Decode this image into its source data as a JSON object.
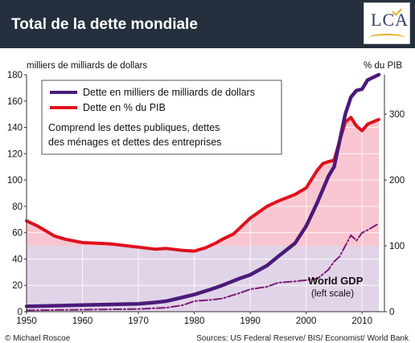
{
  "header": {
    "title": "Total de la dette mondiale",
    "logo_text": "LCA"
  },
  "colors": {
    "header_bg": "#252f3d",
    "debt_line": "#4b1a7a",
    "pct_line": "#e0101e",
    "gdp_line": "#7a1a78",
    "pink_fill": "#f8c6d0",
    "lavender_fill": "#ddd6ec",
    "plot_bg": "#ffffff"
  },
  "chart_data": {
    "type": "line",
    "left_axis_label": "milliers de milliards de dollars",
    "right_axis_label": "% du PIB",
    "x_ticks": [
      1950,
      1960,
      1970,
      1980,
      1990,
      2000,
      2010
    ],
    "xlim": [
      1950,
      2014
    ],
    "y_left_ticks": [
      0,
      20,
      40,
      60,
      80,
      100,
      120,
      140,
      160,
      180
    ],
    "ylim_left": [
      0,
      180
    ],
    "y_right_ticks": [
      0,
      100,
      200,
      300
    ],
    "ylim_right": [
      0,
      360
    ],
    "legend": {
      "items": [
        "Dette en milliers de milliards de dollars",
        "Dette en % du PIB"
      ],
      "note": "Comprend les dettes publiques, dettes des ménages et dettes des entreprises"
    },
    "gdp_annotation": [
      "World GDP",
      "(left scale)"
    ],
    "footer_left": "© Michael Roscoe",
    "footer_right": "Sources: US Federal Reserve/ BIS/ Economist/ World Bank",
    "series": [
      {
        "name": "Dette en milliers de milliards de dollars",
        "axis": "left",
        "color": "#4b1a7a",
        "x": [
          1950,
          1955,
          1960,
          1965,
          1970,
          1973,
          1975,
          1978,
          1980,
          1983,
          1985,
          1988,
          1990,
          1993,
          1995,
          1998,
          2000,
          2002,
          2004,
          2005,
          2006,
          2007,
          2008,
          2009,
          2010,
          2011,
          2013
        ],
        "y": [
          4,
          4.5,
          5,
          5.5,
          6,
          7,
          8,
          11,
          13,
          17,
          20,
          25,
          28,
          35,
          42,
          52,
          65,
          83,
          103,
          110,
          130,
          150,
          163,
          168,
          169,
          176,
          180
        ]
      },
      {
        "name": "Dette en % du PIB",
        "axis": "right",
        "color": "#e0101e",
        "x": [
          1950,
          1952,
          1954,
          1955,
          1957,
          1960,
          1965,
          1970,
          1973,
          1975,
          1978,
          1980,
          1982,
          1984,
          1985,
          1987,
          1990,
          1993,
          1995,
          1998,
          2000,
          2002,
          2003,
          2004,
          2005,
          2006,
          2007,
          2008,
          2009,
          2010,
          2011,
          2013
        ],
        "y": [
          138,
          130,
          120,
          115,
          110,
          105,
          103,
          98,
          95,
          96,
          93,
          92,
          97,
          105,
          110,
          118,
          142,
          160,
          168,
          178,
          188,
          215,
          225,
          228,
          230,
          260,
          288,
          295,
          282,
          275,
          285,
          292
        ]
      },
      {
        "name": "World GDP",
        "axis": "left",
        "color": "#7a1a78",
        "x": [
          1950,
          1960,
          1970,
          1975,
          1978,
          1980,
          1983,
          1985,
          1988,
          1990,
          1993,
          1995,
          1998,
          2000,
          2002,
          2004,
          2005,
          2006,
          2007,
          2008,
          2009,
          2010,
          2011,
          2013
        ],
        "y": [
          1,
          1.5,
          2,
          3,
          5,
          8,
          9,
          10,
          14,
          17,
          19,
          22,
          23,
          24,
          25,
          32,
          38,
          42,
          50,
          58,
          54,
          60,
          62,
          67
        ]
      }
    ]
  }
}
